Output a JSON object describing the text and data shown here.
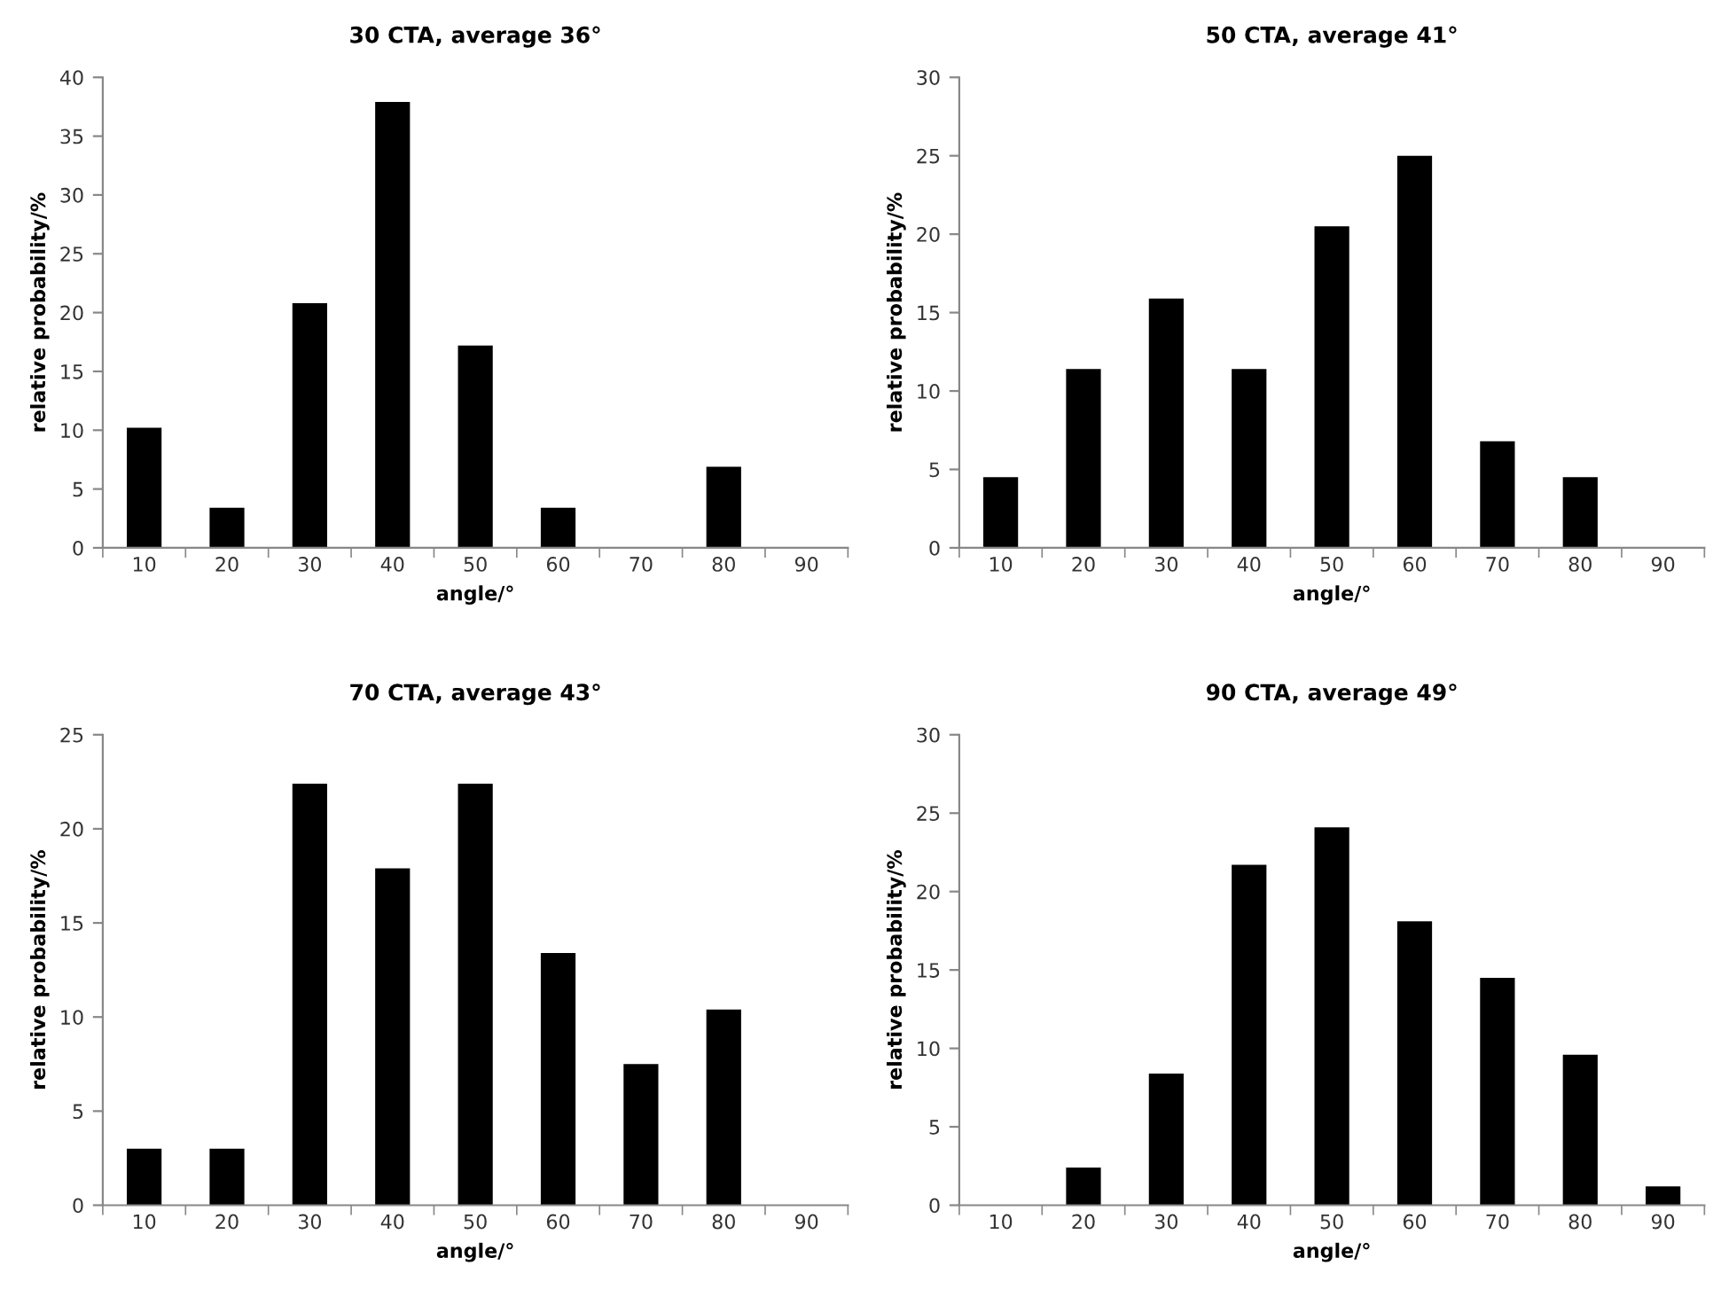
{
  "chart_data": [
    {
      "type": "bar",
      "title": "30 CTA, average 36°",
      "xlabel": "angle/°",
      "ylabel": "relative probability/%",
      "categories": [
        "10",
        "20",
        "30",
        "40",
        "50",
        "60",
        "70",
        "80",
        "90"
      ],
      "values": [
        10.2,
        3.4,
        20.8,
        37.9,
        17.2,
        3.4,
        0,
        6.9,
        0
      ],
      "color": "#000000",
      "ylim": [
        0,
        40
      ],
      "yticks": [
        0,
        5,
        10,
        15,
        20,
        25,
        30,
        35,
        40
      ],
      "grid": false
    },
    {
      "type": "bar",
      "title": "50 CTA, average 41°",
      "xlabel": "angle/°",
      "ylabel": "relative probability/%",
      "categories": [
        "10",
        "20",
        "30",
        "40",
        "50",
        "60",
        "70",
        "80",
        "90"
      ],
      "values": [
        4.5,
        11.4,
        15.9,
        11.4,
        20.5,
        25,
        6.8,
        4.5,
        0
      ],
      "color": "#000000",
      "ylim": [
        0,
        30
      ],
      "yticks": [
        0,
        5,
        10,
        15,
        20,
        25,
        30
      ],
      "grid": false
    },
    {
      "type": "bar",
      "title": "70 CTA, average 43°",
      "xlabel": "angle/°",
      "ylabel": "relative probability/%",
      "categories": [
        "10",
        "20",
        "30",
        "40",
        "50",
        "60",
        "70",
        "80",
        "90"
      ],
      "values": [
        3,
        3,
        22.4,
        17.9,
        22.4,
        13.4,
        7.5,
        10.4,
        0
      ],
      "color": "#000000",
      "ylim": [
        0,
        25
      ],
      "yticks": [
        0,
        5,
        10,
        15,
        20,
        25
      ],
      "grid": false
    },
    {
      "type": "bar",
      "title": "90 CTA, average 49°",
      "xlabel": "angle/°",
      "ylabel": "relative probability/%",
      "categories": [
        "10",
        "20",
        "30",
        "40",
        "50",
        "60",
        "70",
        "80",
        "90"
      ],
      "values": [
        0,
        2.4,
        8.4,
        21.7,
        24.1,
        18.1,
        14.5,
        9.6,
        1.2
      ],
      "color": "#000000",
      "ylim": [
        0,
        30
      ],
      "yticks": [
        0,
        5,
        10,
        15,
        20,
        25,
        30
      ],
      "grid": false
    }
  ]
}
